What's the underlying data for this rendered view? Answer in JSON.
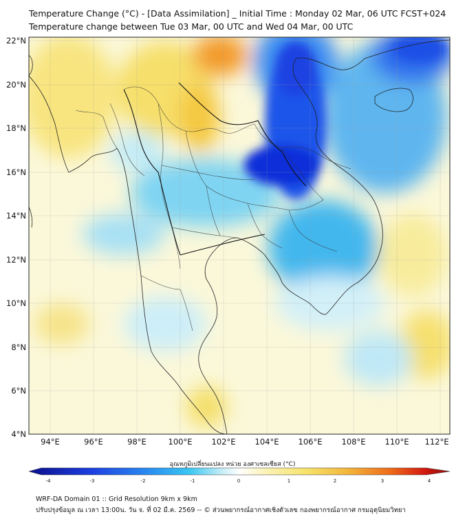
{
  "header": {
    "title_line1": "Temperature Change (°C) - [Data Assimilation] _ Initial Time : Monday 02 Mar, 06 UTC FCST+024",
    "title_line2": "Temperature change between Tue 03 Mar, 00 UTC and Wed 04 Mar, 00 UTC"
  },
  "map": {
    "lat_labels": [
      "22°N",
      "20°N",
      "18°N",
      "16°N",
      "14°N",
      "12°N",
      "10°N",
      "8°N",
      "6°N",
      "4°N"
    ],
    "lon_labels": [
      "94°E",
      "96°E",
      "98°E",
      "100°E",
      "102°E",
      "104°E",
      "106°E",
      "108°E",
      "110°E",
      "112°E"
    ]
  },
  "colorbar": {
    "label": "อุณหภูมิเปลี่ยนแปลง หน่วย องศาเซลเซียส (°C)",
    "ticks": [
      "-4",
      "-3",
      "-2",
      "-1",
      "0",
      "1",
      "2",
      "3",
      "4"
    ],
    "colors": {
      "cold_max": "#0b0f8a",
      "cold": "#1c5cf0",
      "cool": "#39c6f2",
      "neutral": "#ffffff",
      "warm": "#f6e26a",
      "hot": "#f08a1e",
      "hot_max": "#8b0a0a"
    }
  },
  "footer": {
    "line1": "WRF-DA Domain 01 :: Grid Resolution 9km x 9km",
    "line2": "ปรับปรุงข้อมูล ณ เวลา 13:00น. วัน จ. ที่ 02 มี.ค. 2569 -- © ส่วนพยากรณ์อากาศเชิงตัวเลข กองพยากรณ์อากาศ กรมอุตุนิยมวิทยา"
  }
}
